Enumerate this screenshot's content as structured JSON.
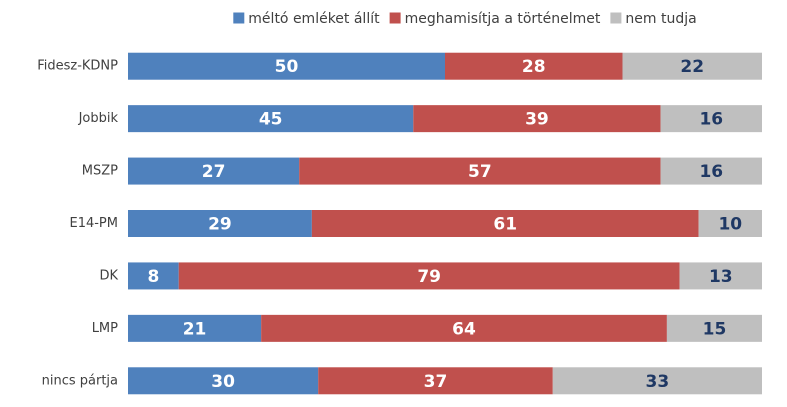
{
  "chart_data": {
    "type": "stacked-barh",
    "categories": [
      "Fidesz-KDNP",
      "Jobbik",
      "MSZP",
      "E14-PM",
      "DK",
      "LMP",
      "nincs pártja"
    ],
    "series": [
      {
        "name": "méltó emléket állít",
        "color": "#4f81bd",
        "label_color": "#ffffff",
        "values": [
          50,
          45,
          27,
          29,
          8,
          21,
          30
        ]
      },
      {
        "name": "meghamisítja a történelmet",
        "color": "#c0504d",
        "label_color": "#ffffff",
        "values": [
          28,
          39,
          57,
          61,
          79,
          64,
          37
        ]
      },
      {
        "name": "nem tudja",
        "color": "#bfbfbf",
        "label_color": "#1f3864",
        "values": [
          22,
          16,
          16,
          10,
          13,
          15,
          33
        ]
      }
    ],
    "xlim": [
      0,
      100
    ],
    "legend": "top"
  }
}
